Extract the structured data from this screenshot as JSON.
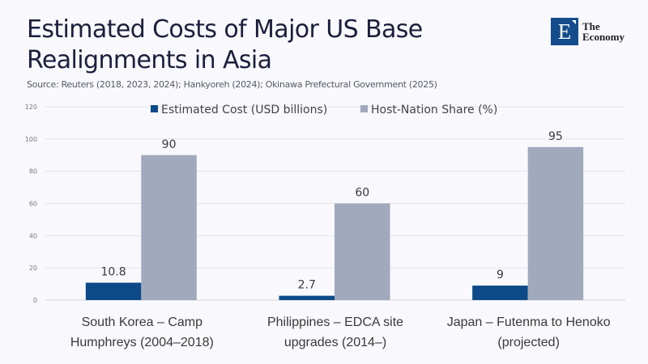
{
  "header": {
    "title_line1": "Estimated Costs of Major US Base",
    "title_line2": "Realignments in Asia",
    "source": "Source:  Reuters (2018, 2023, 2024); Hankyoreh (2024); Okinawa Prefectural Government (2025)"
  },
  "logo": {
    "mark": "E",
    "line1": "The",
    "line2": "Economy"
  },
  "chart_data": {
    "type": "bar",
    "title": "Estimated Costs of Major US Base Realignments in Asia",
    "xlabel": "",
    "ylabel": "",
    "ylim": [
      0,
      120
    ],
    "yticks": [
      0,
      20,
      40,
      60,
      80,
      100,
      120
    ],
    "grid": true,
    "legend_position": "top",
    "categories": [
      [
        "South Korea – Camp",
        "Humphreys (2004–2018)"
      ],
      [
        "Philippines – EDCA site",
        "upgrades (2014–)"
      ],
      [
        "Japan – Futenma to Henoko",
        "(projected)"
      ]
    ],
    "series": [
      {
        "name": "Estimated Cost (USD billions)",
        "color": "#0d4a87",
        "values": [
          10.8,
          2.7,
          9
        ],
        "labels": [
          "10.8",
          "2.7",
          "9"
        ]
      },
      {
        "name": "Host-Nation Share (%)",
        "color": "#a1a9bc",
        "values": [
          90,
          60,
          95
        ],
        "labels": [
          "90",
          "60",
          "95"
        ]
      }
    ]
  }
}
